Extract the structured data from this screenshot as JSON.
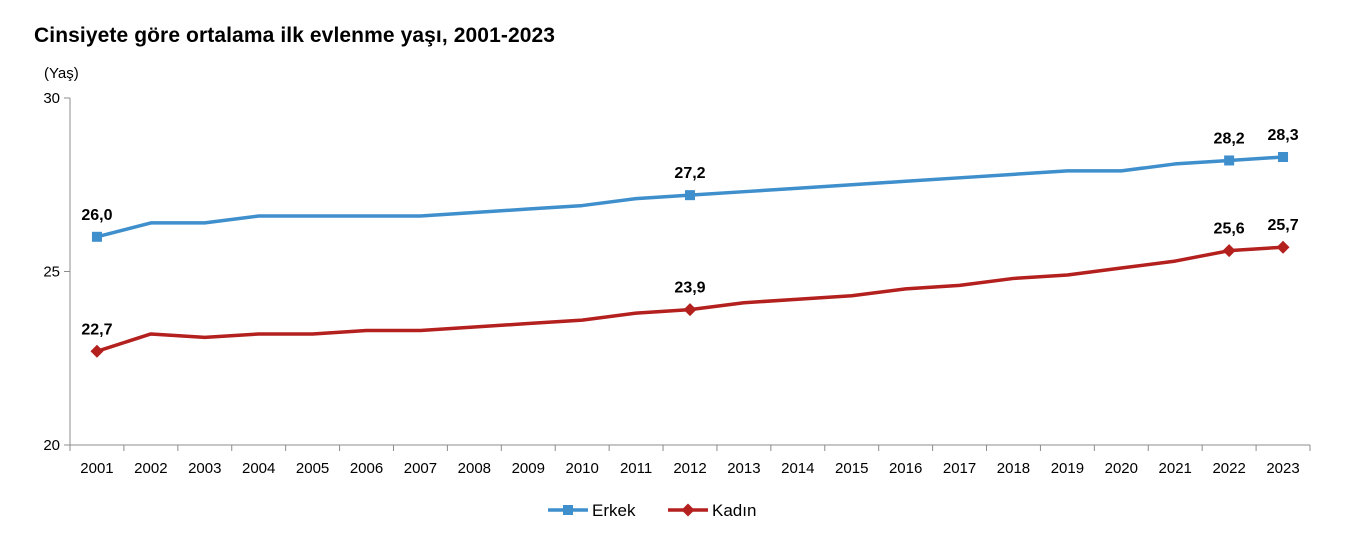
{
  "chart_data": {
    "type": "line",
    "title": "Cinsiyete göre ortalama ilk evlenme yaşı, 2001-2023",
    "ylabel": "(Yaş)",
    "xlabel": "",
    "ylim": [
      20,
      30
    ],
    "yticks": [
      "20",
      "25",
      "30"
    ],
    "categories": [
      "2001",
      "2002",
      "2003",
      "2004",
      "2005",
      "2006",
      "2007",
      "2008",
      "2009",
      "2010",
      "2011",
      "2012",
      "2013",
      "2014",
      "2015",
      "2016",
      "2017",
      "2018",
      "2019",
      "2020",
      "2021",
      "2022",
      "2023"
    ],
    "series": [
      {
        "name": "Erkek",
        "color": "#3f8fcd",
        "marker": "square",
        "values": [
          26.0,
          26.4,
          26.4,
          26.6,
          26.6,
          26.6,
          26.6,
          26.7,
          26.8,
          26.9,
          27.1,
          27.2,
          27.3,
          27.4,
          27.5,
          27.6,
          27.7,
          27.8,
          27.9,
          27.9,
          28.1,
          28.2,
          28.3
        ],
        "labels": [
          {
            "index": 0,
            "text": "26,0"
          },
          {
            "index": 11,
            "text": "27,2"
          },
          {
            "index": 21,
            "text": "28,2"
          },
          {
            "index": 22,
            "text": "28,3"
          }
        ]
      },
      {
        "name": "Kadın",
        "color": "#b3201e",
        "marker": "diamond",
        "values": [
          22.7,
          23.2,
          23.1,
          23.2,
          23.2,
          23.3,
          23.3,
          23.4,
          23.5,
          23.6,
          23.8,
          23.9,
          24.1,
          24.2,
          24.3,
          24.5,
          24.6,
          24.8,
          24.9,
          25.1,
          25.3,
          25.6,
          25.7
        ],
        "labels": [
          {
            "index": 0,
            "text": "22,7"
          },
          {
            "index": 11,
            "text": "23,9"
          },
          {
            "index": 21,
            "text": "25,6"
          },
          {
            "index": 22,
            "text": "25,7"
          }
        ]
      }
    ],
    "legend_position": "bottom",
    "grid": false
  }
}
